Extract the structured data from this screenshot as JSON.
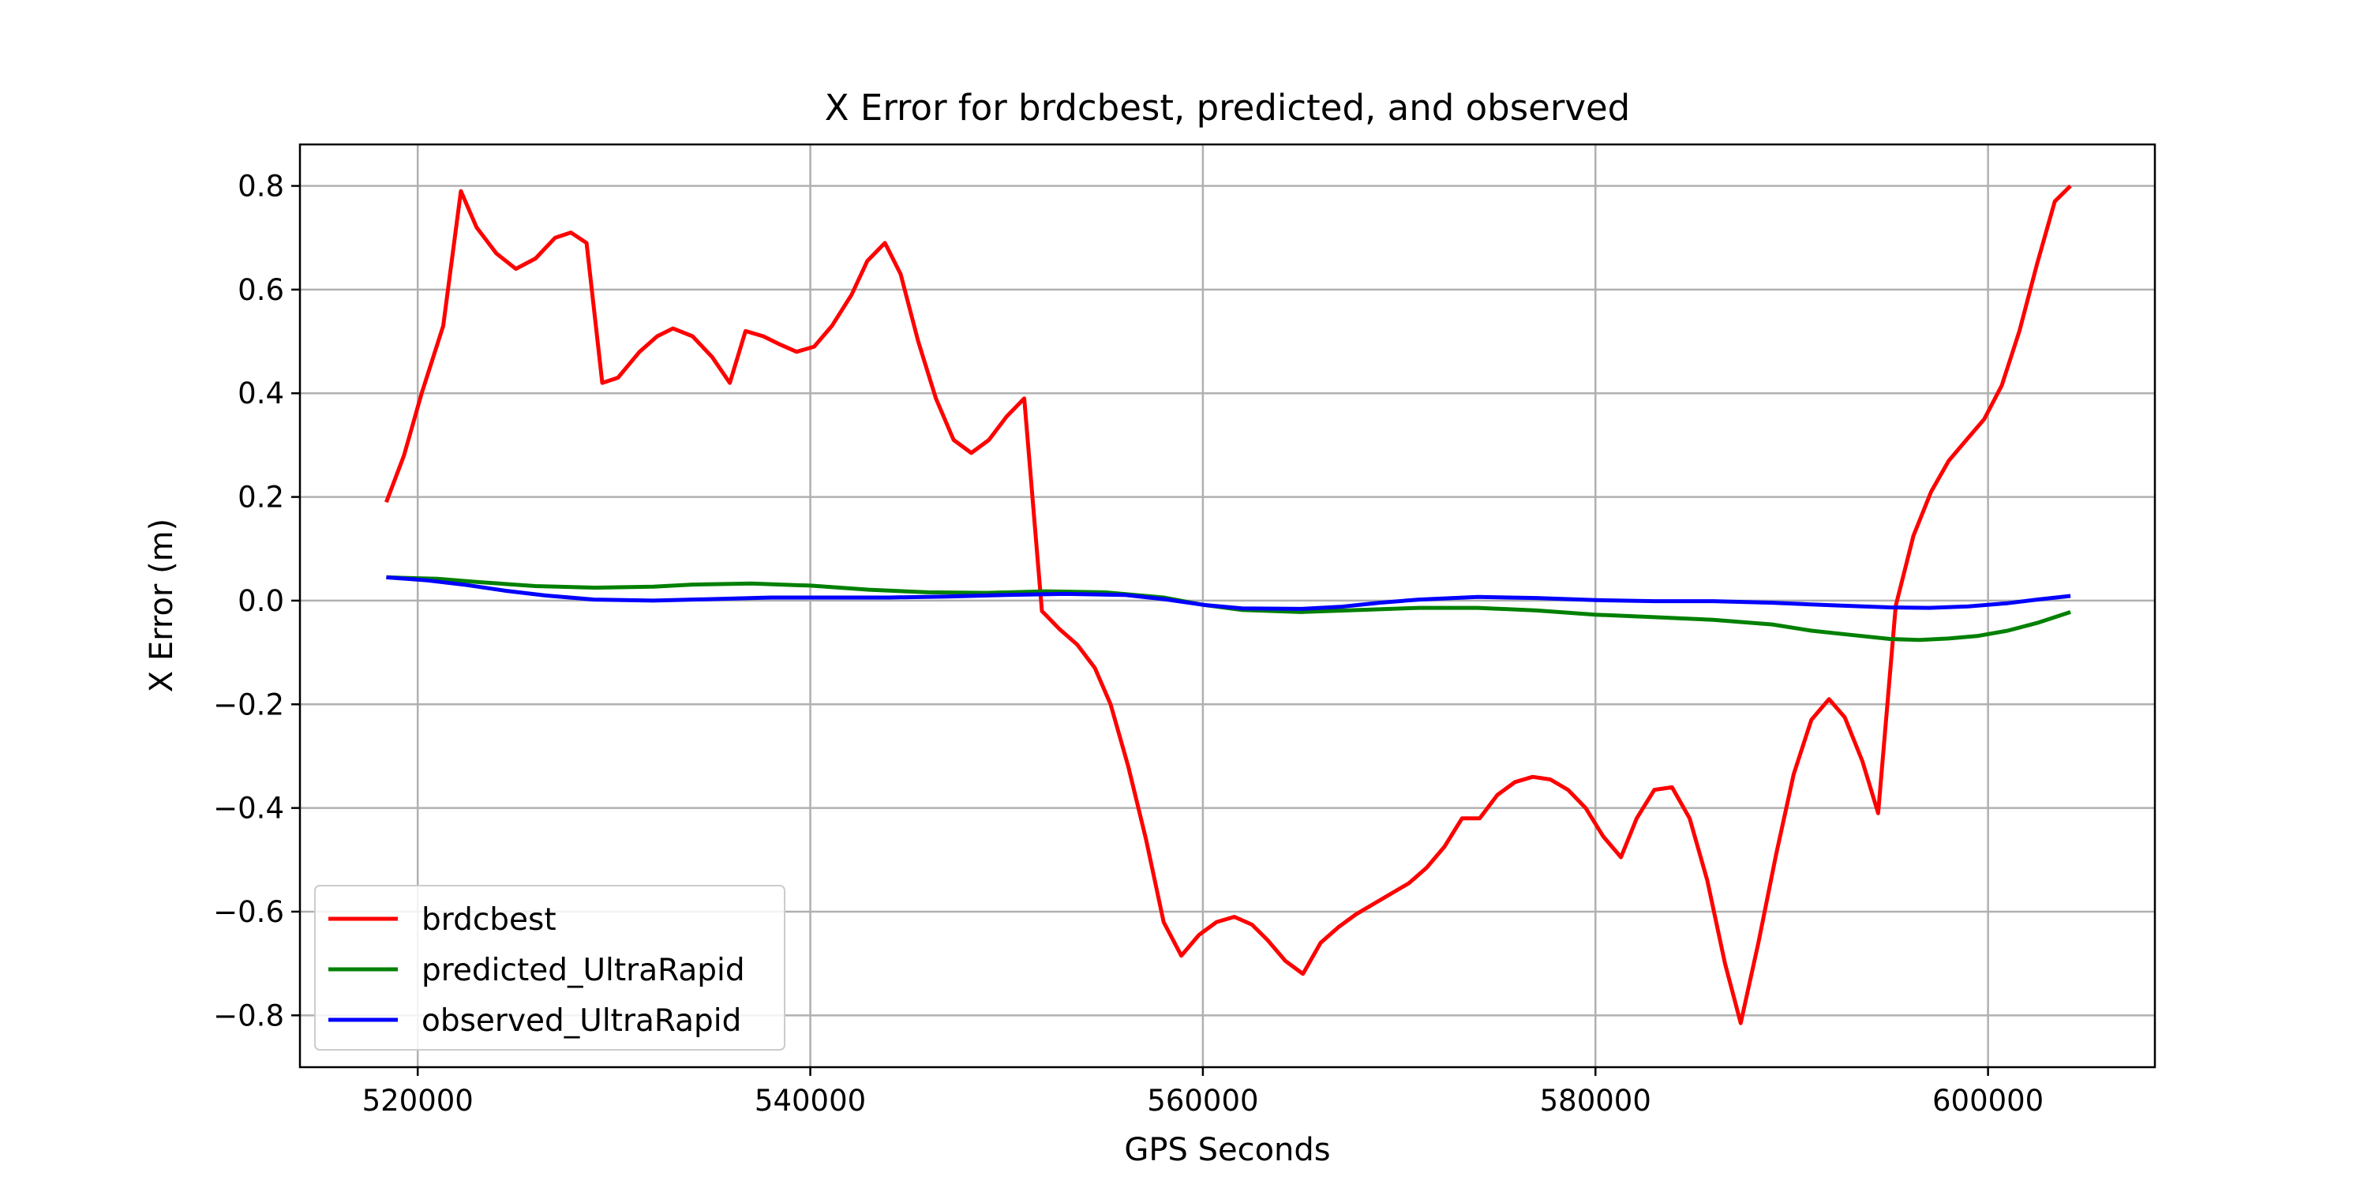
{
  "chart_data": {
    "type": "line",
    "title": "X Error for brdcbest, predicted, and observed",
    "xlabel": "GPS Seconds",
    "ylabel": "X Error (m)",
    "xlim": [
      514000,
      608500
    ],
    "ylim": [
      -0.9,
      0.88
    ],
    "xticks": [
      520000,
      540000,
      560000,
      580000,
      600000
    ],
    "xtick_labels": [
      "520000",
      "540000",
      "560000",
      "580000",
      "600000"
    ],
    "yticks": [
      -0.8,
      -0.6,
      -0.4,
      -0.2,
      0.0,
      0.2,
      0.4,
      0.6,
      0.8
    ],
    "ytick_labels": [
      "−0.8",
      "−0.6",
      "−0.4",
      "−0.2",
      "0.0",
      "0.2",
      "0.4",
      "0.6",
      "0.8"
    ],
    "grid": true,
    "legend_position": "lower-left",
    "series": [
      {
        "name": "brdcbest",
        "color": "#ff0000",
        "points": [
          [
            518400,
            0.19
          ],
          [
            519300,
            0.28
          ],
          [
            520200,
            0.4
          ],
          [
            521300,
            0.53
          ],
          [
            522200,
            0.79
          ],
          [
            523000,
            0.72
          ],
          [
            524000,
            0.67
          ],
          [
            525000,
            0.64
          ],
          [
            526000,
            0.66
          ],
          [
            527000,
            0.7
          ],
          [
            527800,
            0.71
          ],
          [
            528600,
            0.69
          ],
          [
            529400,
            0.42
          ],
          [
            530200,
            0.43
          ],
          [
            531300,
            0.48
          ],
          [
            532200,
            0.51
          ],
          [
            533000,
            0.525
          ],
          [
            534000,
            0.51
          ],
          [
            535000,
            0.47
          ],
          [
            535900,
            0.42
          ],
          [
            536700,
            0.52
          ],
          [
            537600,
            0.51
          ],
          [
            538400,
            0.495
          ],
          [
            539300,
            0.48
          ],
          [
            540200,
            0.49
          ],
          [
            541100,
            0.53
          ],
          [
            542100,
            0.59
          ],
          [
            542900,
            0.655
          ],
          [
            543800,
            0.69
          ],
          [
            544600,
            0.63
          ],
          [
            545500,
            0.5
          ],
          [
            546400,
            0.39
          ],
          [
            547300,
            0.31
          ],
          [
            548200,
            0.285
          ],
          [
            549100,
            0.31
          ],
          [
            550000,
            0.355
          ],
          [
            550900,
            0.39
          ],
          [
            551800,
            -0.02
          ],
          [
            552700,
            -0.055
          ],
          [
            553600,
            -0.085
          ],
          [
            554500,
            -0.13
          ],
          [
            555300,
            -0.2
          ],
          [
            556200,
            -0.32
          ],
          [
            557100,
            -0.46
          ],
          [
            558000,
            -0.62
          ],
          [
            558900,
            -0.685
          ],
          [
            559800,
            -0.645
          ],
          [
            560700,
            -0.62
          ],
          [
            561600,
            -0.61
          ],
          [
            562500,
            -0.625
          ],
          [
            563300,
            -0.655
          ],
          [
            564200,
            -0.695
          ],
          [
            565100,
            -0.72
          ],
          [
            566000,
            -0.66
          ],
          [
            566900,
            -0.63
          ],
          [
            567800,
            -0.605
          ],
          [
            568700,
            -0.585
          ],
          [
            569600,
            -0.565
          ],
          [
            570500,
            -0.545
          ],
          [
            571400,
            -0.515
          ],
          [
            572300,
            -0.475
          ],
          [
            573200,
            -0.42
          ],
          [
            574100,
            -0.42
          ],
          [
            575000,
            -0.375
          ],
          [
            575900,
            -0.35
          ],
          [
            576800,
            -0.34
          ],
          [
            577700,
            -0.345
          ],
          [
            578600,
            -0.365
          ],
          [
            579500,
            -0.4
          ],
          [
            580400,
            -0.455
          ],
          [
            581300,
            -0.495
          ],
          [
            582100,
            -0.42
          ],
          [
            583000,
            -0.365
          ],
          [
            583900,
            -0.36
          ],
          [
            584800,
            -0.42
          ],
          [
            585700,
            -0.54
          ],
          [
            586600,
            -0.7
          ],
          [
            587400,
            -0.815
          ],
          [
            588300,
            -0.66
          ],
          [
            589200,
            -0.49
          ],
          [
            590100,
            -0.335
          ],
          [
            591000,
            -0.23
          ],
          [
            591900,
            -0.19
          ],
          [
            592700,
            -0.225
          ],
          [
            593600,
            -0.31
          ],
          [
            594400,
            -0.41
          ],
          [
            595300,
            -0.01
          ],
          [
            596200,
            0.125
          ],
          [
            597100,
            0.21
          ],
          [
            598000,
            0.27
          ],
          [
            598900,
            0.31
          ],
          [
            599800,
            0.35
          ],
          [
            600700,
            0.415
          ],
          [
            601600,
            0.52
          ],
          [
            602500,
            0.65
          ],
          [
            603400,
            0.77
          ],
          [
            604200,
            0.8
          ]
        ]
      },
      {
        "name": "predicted_UltraRapid",
        "color": "#008000",
        "points": [
          [
            518400,
            0.045
          ],
          [
            521000,
            0.042
          ],
          [
            523000,
            0.036
          ],
          [
            526000,
            0.028
          ],
          [
            529000,
            0.025
          ],
          [
            532000,
            0.027
          ],
          [
            534000,
            0.031
          ],
          [
            537000,
            0.033
          ],
          [
            540000,
            0.029
          ],
          [
            543000,
            0.021
          ],
          [
            546000,
            0.016
          ],
          [
            549000,
            0.015
          ],
          [
            552000,
            0.018
          ],
          [
            555000,
            0.016
          ],
          [
            558000,
            0.006
          ],
          [
            560000,
            -0.008
          ],
          [
            562000,
            -0.018
          ],
          [
            565000,
            -0.022
          ],
          [
            568000,
            -0.018
          ],
          [
            571000,
            -0.014
          ],
          [
            574000,
            -0.014
          ],
          [
            577000,
            -0.019
          ],
          [
            580000,
            -0.027
          ],
          [
            583000,
            -0.032
          ],
          [
            586000,
            -0.037
          ],
          [
            589000,
            -0.046
          ],
          [
            591000,
            -0.058
          ],
          [
            593000,
            -0.066
          ],
          [
            595000,
            -0.074
          ],
          [
            596500,
            -0.076
          ],
          [
            598000,
            -0.073
          ],
          [
            599500,
            -0.068
          ],
          [
            601000,
            -0.058
          ],
          [
            602500,
            -0.043
          ],
          [
            604200,
            -0.022
          ]
        ]
      },
      {
        "name": "observed_UltraRapid",
        "color": "#0000ff",
        "points": [
          [
            518400,
            0.045
          ],
          [
            520500,
            0.039
          ],
          [
            522500,
            0.03
          ],
          [
            524500,
            0.019
          ],
          [
            526500,
            0.01
          ],
          [
            529000,
            0.002
          ],
          [
            532000,
            0.0
          ],
          [
            535000,
            0.003
          ],
          [
            538000,
            0.006
          ],
          [
            541000,
            0.006
          ],
          [
            544000,
            0.006
          ],
          [
            547000,
            0.008
          ],
          [
            550000,
            0.011
          ],
          [
            553000,
            0.013
          ],
          [
            556000,
            0.011
          ],
          [
            558000,
            0.003
          ],
          [
            560000,
            -0.008
          ],
          [
            562000,
            -0.015
          ],
          [
            565000,
            -0.016
          ],
          [
            567000,
            -0.012
          ],
          [
            569000,
            -0.004
          ],
          [
            571000,
            0.002
          ],
          [
            574000,
            0.007
          ],
          [
            577000,
            0.005
          ],
          [
            580000,
            0.001
          ],
          [
            583000,
            -0.001
          ],
          [
            586000,
            -0.001
          ],
          [
            589000,
            -0.004
          ],
          [
            592000,
            -0.009
          ],
          [
            595000,
            -0.013
          ],
          [
            597000,
            -0.014
          ],
          [
            599000,
            -0.011
          ],
          [
            601000,
            -0.005
          ],
          [
            602500,
            0.002
          ],
          [
            604200,
            0.009
          ]
        ]
      }
    ]
  }
}
